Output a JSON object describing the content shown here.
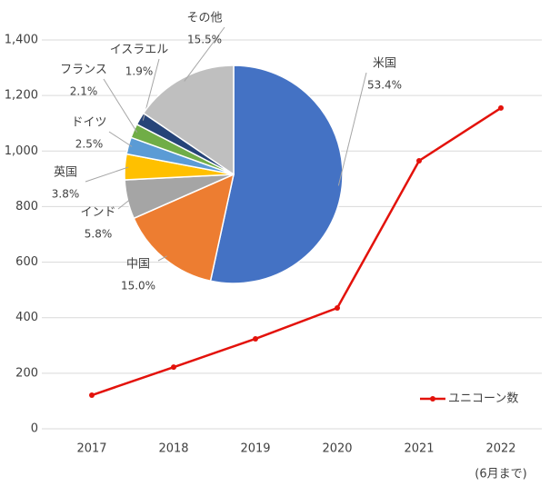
{
  "chart_data": [
    {
      "type": "line",
      "categories": [
        "2017",
        "2018",
        "2019",
        "2020",
        "2021",
        "2022"
      ],
      "category_note": "(6月まで)",
      "series": [
        {
          "name": "ユニコーン数",
          "color": "#e3120b",
          "values": [
            121,
            222,
            324,
            435,
            965,
            1155
          ]
        }
      ],
      "ylim": [
        0,
        1400
      ],
      "yticks": [
        0,
        200,
        400,
        600,
        800,
        {
          "value": 1000,
          "label": "1,000"
        },
        {
          "value": 1200,
          "label": "1,200"
        },
        {
          "value": 1400,
          "label": "1,400"
        }
      ],
      "grid": true,
      "legend": "lower right"
    },
    {
      "type": "pie",
      "categories": [
        "米国",
        "中国",
        "インド",
        "英国",
        "ドイツ",
        "フランス",
        "イスラエル",
        "その他"
      ],
      "values": [
        53.4,
        15.0,
        5.8,
        3.8,
        2.5,
        2.1,
        1.9,
        15.5
      ],
      "value_labels": [
        "53.4%",
        "15.0%",
        "5.8%",
        "3.8%",
        "2.5%",
        "2.1%",
        "1.9%",
        "15.5%"
      ],
      "colors": [
        "#4472c4",
        "#ed7d31",
        "#a5a5a5",
        "#ffc000",
        "#5b9bd5",
        "#70ad47",
        "#264478",
        "#bfbfbf"
      ]
    }
  ]
}
